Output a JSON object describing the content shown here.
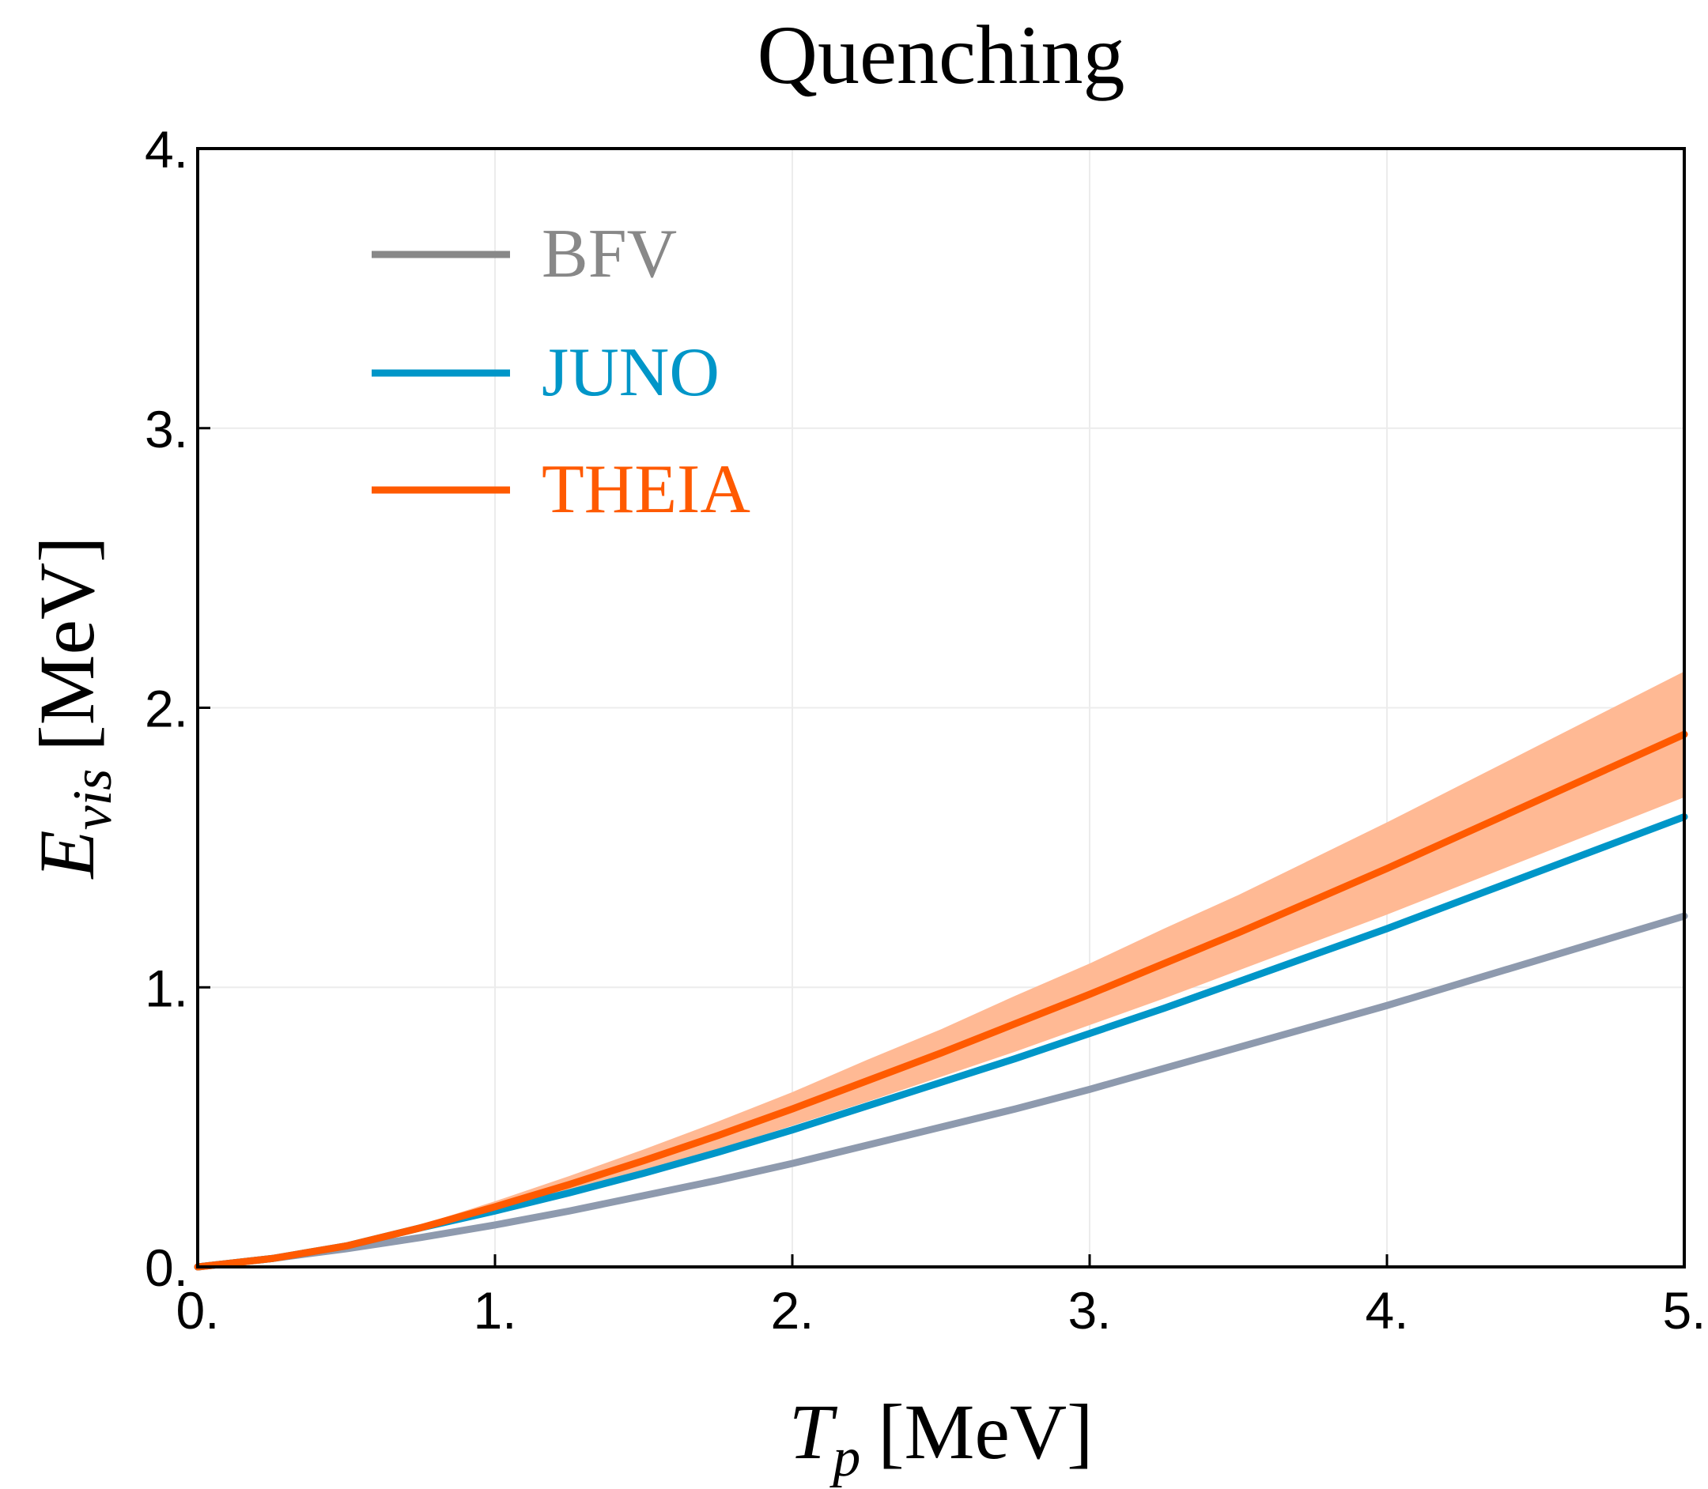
{
  "chart_data": {
    "type": "line",
    "title": "Quenching",
    "xlabel": {
      "symbol": "T",
      "subscript": "p",
      "unit": "[MeV]"
    },
    "ylabel": {
      "symbol": "E",
      "subscript": "vis",
      "unit": "[MeV]"
    },
    "xlim": [
      0,
      5
    ],
    "ylim": [
      0,
      4
    ],
    "x_ticks": [
      0,
      1,
      2,
      3,
      4,
      5
    ],
    "x_tick_labels": [
      "0.",
      "1.",
      "2.",
      "3.",
      "4.",
      "5."
    ],
    "y_ticks": [
      0,
      1,
      2,
      3,
      4
    ],
    "y_tick_labels": [
      "0.",
      "1.",
      "2.",
      "3.",
      "4."
    ],
    "grid": true,
    "legend_position": "top-left",
    "x": [
      0,
      0.25,
      0.5,
      0.75,
      1.0,
      1.25,
      1.5,
      1.75,
      2.0,
      2.25,
      2.5,
      2.75,
      3.0,
      3.25,
      3.5,
      3.75,
      4.0,
      4.25,
      4.5,
      4.75,
      5.0
    ],
    "series": [
      {
        "name": "BFV",
        "color": "#8e9aae",
        "legend_color": "#888888",
        "values": [
          0.0,
          0.03,
          0.065,
          0.105,
          0.15,
          0.2,
          0.255,
          0.31,
          0.37,
          0.435,
          0.5,
          0.565,
          0.635,
          0.71,
          0.785,
          0.86,
          0.935,
          1.015,
          1.095,
          1.175,
          1.255
        ]
      },
      {
        "name": "JUNO",
        "color": "#0096c8",
        "values": [
          0.0,
          0.03,
          0.075,
          0.14,
          0.2,
          0.265,
          0.335,
          0.41,
          0.49,
          0.575,
          0.66,
          0.745,
          0.835,
          0.925,
          1.02,
          1.115,
          1.21,
          1.31,
          1.41,
          1.51,
          1.61
        ]
      },
      {
        "name": "THEIA",
        "color": "#ff5a00",
        "band_color": "#ffb994",
        "values": [
          0.0,
          0.03,
          0.075,
          0.14,
          0.215,
          0.295,
          0.38,
          0.47,
          0.565,
          0.665,
          0.765,
          0.87,
          0.975,
          1.085,
          1.195,
          1.31,
          1.425,
          1.545,
          1.665,
          1.785,
          1.905
        ],
        "band_lower": [
          0.0,
          0.03,
          0.07,
          0.13,
          0.195,
          0.265,
          0.34,
          0.42,
          0.505,
          0.59,
          0.68,
          0.77,
          0.865,
          0.96,
          1.06,
          1.16,
          1.26,
          1.365,
          1.47,
          1.575,
          1.68
        ],
        "band_upper": [
          0.0,
          0.03,
          0.08,
          0.15,
          0.235,
          0.325,
          0.42,
          0.52,
          0.625,
          0.74,
          0.85,
          0.97,
          1.085,
          1.21,
          1.33,
          1.46,
          1.59,
          1.725,
          1.86,
          1.995,
          2.13
        ]
      }
    ]
  }
}
